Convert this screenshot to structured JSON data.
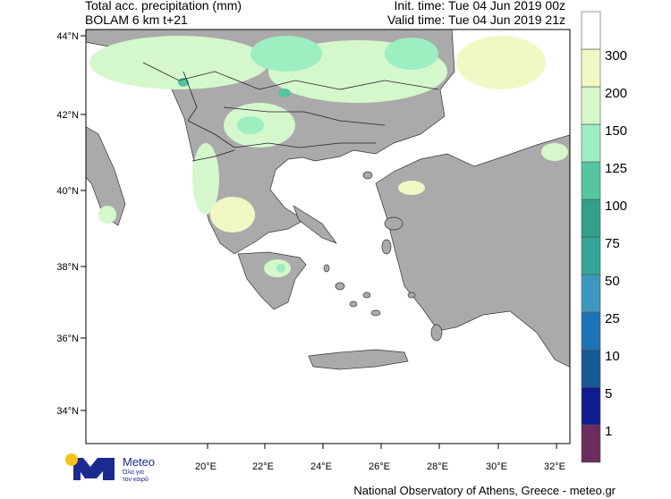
{
  "header": {
    "title": "Total acc. precipitation (mm)",
    "model": "BOLAM 6 km t+21",
    "init_time": "Init. time: Tue 04 Jun 2019 00z",
    "valid_time": "Valid time: Tue 04 Jun 2019 21z"
  },
  "map": {
    "lat_labels": [
      "44°N",
      "42°N",
      "40°N",
      "38°N",
      "36°N",
      "34°N"
    ],
    "lon_labels": [
      "20°E",
      "22°E",
      "24°E",
      "26°E",
      "28°E",
      "30°E",
      "32°E"
    ],
    "land_color": "#aaaaaa",
    "sea_color": "#ffffff"
  },
  "legend": {
    "labels": [
      "300",
      "200",
      "150",
      "125",
      "100",
      "75",
      "50",
      "25",
      "10",
      "5",
      "1"
    ],
    "colors": [
      "#6b2d5e",
      "#101b8f",
      "#165a93",
      "#1c74b4",
      "#3c98bf",
      "#34a597",
      "#31a18e",
      "#55c5a1",
      "#9deec0",
      "#d4f7cc",
      "#f1f8c3",
      "#ffffff"
    ]
  },
  "logo": {
    "name": "Meteo",
    "tagline_1": "Όλα για",
    "tagline_2": "τον καιρό"
  },
  "footer": "National Observatory of Athens, Greece - meteo.gr"
}
